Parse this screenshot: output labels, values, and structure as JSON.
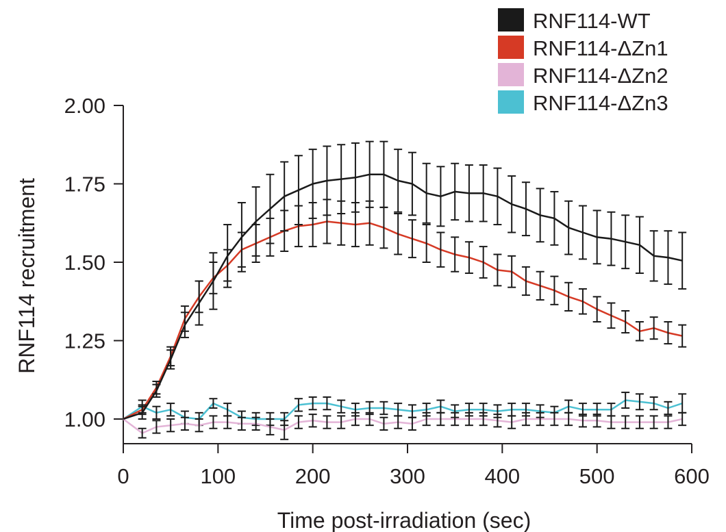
{
  "chart_data": {
    "type": "line",
    "title": "",
    "xlabel": "Time post-irradiation (sec)",
    "ylabel": "RNF114 recruitment",
    "xlim": [
      0,
      600
    ],
    "ylim": [
      0.92,
      2.0
    ],
    "xticks": [
      0,
      100,
      200,
      300,
      400,
      500,
      600
    ],
    "xtick_labels": [
      "0",
      "100",
      "200",
      "300",
      "400",
      "500",
      "600"
    ],
    "yticks": [
      1.0,
      1.25,
      1.5,
      1.75,
      2.0
    ],
    "ytick_labels": [
      "1.00",
      "1.25",
      "1.50",
      "1.75",
      "2.00"
    ],
    "grid": false,
    "legend_position": "top-right",
    "x": [
      0,
      20,
      35,
      50,
      65,
      80,
      95,
      110,
      125,
      140,
      155,
      170,
      185,
      200,
      215,
      230,
      245,
      260,
      275,
      290,
      305,
      320,
      335,
      350,
      365,
      380,
      395,
      410,
      425,
      440,
      455,
      470,
      485,
      500,
      515,
      530,
      545,
      560,
      575,
      590
    ],
    "series": [
      {
        "name": "RNF114-WT",
        "color": "#1a1a1a",
        "values": [
          1.0,
          1.02,
          1.09,
          1.19,
          1.3,
          1.37,
          1.44,
          1.52,
          1.58,
          1.63,
          1.67,
          1.71,
          1.73,
          1.75,
          1.76,
          1.765,
          1.77,
          1.78,
          1.78,
          1.76,
          1.75,
          1.72,
          1.71,
          1.725,
          1.72,
          1.72,
          1.71,
          1.685,
          1.67,
          1.65,
          1.64,
          1.61,
          1.595,
          1.58,
          1.575,
          1.565,
          1.555,
          1.52,
          1.515,
          1.505
        ],
        "errors": [
          0,
          0.02,
          0.02,
          0.03,
          0.04,
          0.07,
          0.09,
          0.1,
          0.11,
          0.11,
          0.11,
          0.11,
          0.11,
          0.11,
          0.11,
          0.11,
          0.11,
          0.105,
          0.105,
          0.1,
          0.1,
          0.095,
          0.095,
          0.09,
          0.09,
          0.09,
          0.09,
          0.09,
          0.085,
          0.085,
          0.085,
          0.085,
          0.085,
          0.085,
          0.085,
          0.085,
          0.09,
          0.08,
          0.085,
          0.09
        ]
      },
      {
        "name": "RNF114-ΔZn1",
        "color": "#d63a25",
        "values": [
          1.0,
          1.03,
          1.1,
          1.2,
          1.32,
          1.39,
          1.45,
          1.49,
          1.54,
          1.56,
          1.58,
          1.6,
          1.615,
          1.62,
          1.63,
          1.625,
          1.62,
          1.625,
          1.61,
          1.59,
          1.575,
          1.56,
          1.54,
          1.525,
          1.515,
          1.5,
          1.475,
          1.47,
          1.44,
          1.425,
          1.41,
          1.39,
          1.375,
          1.35,
          1.33,
          1.31,
          1.28,
          1.29,
          1.275,
          1.265
        ],
        "errors": [
          0,
          0.015,
          0.02,
          0.03,
          0.04,
          0.05,
          0.05,
          0.05,
          0.055,
          0.06,
          0.06,
          0.065,
          0.065,
          0.07,
          0.07,
          0.07,
          0.07,
          0.07,
          0.065,
          0.065,
          0.06,
          0.06,
          0.055,
          0.055,
          0.05,
          0.05,
          0.05,
          0.05,
          0.045,
          0.045,
          0.045,
          0.045,
          0.04,
          0.04,
          0.04,
          0.035,
          0.03,
          0.035,
          0.035,
          0.035
        ]
      },
      {
        "name": "RNF114-ΔZn2",
        "color": "#e3b4d7",
        "values": [
          1.0,
          0.955,
          0.975,
          0.98,
          0.985,
          0.98,
          0.99,
          0.99,
          0.985,
          0.985,
          0.975,
          0.965,
          0.99,
          0.995,
          0.99,
          0.99,
          1.0,
          1.0,
          0.985,
          0.99,
          0.985,
          1.0,
          1.0,
          1.0,
          1.0,
          1.0,
          0.995,
          0.99,
          1.0,
          1.0,
          1.0,
          1.0,
          0.995,
          0.995,
          0.99,
          0.99,
          0.99,
          0.99,
          0.99,
          1.0
        ],
        "errors": [
          0,
          0.015,
          0.02,
          0.02,
          0.02,
          0.02,
          0.02,
          0.02,
          0.02,
          0.02,
          0.025,
          0.03,
          0.02,
          0.02,
          0.02,
          0.02,
          0.02,
          0.02,
          0.02,
          0.02,
          0.02,
          0.02,
          0.02,
          0.02,
          0.02,
          0.02,
          0.02,
          0.02,
          0.02,
          0.02,
          0.02,
          0.02,
          0.02,
          0.02,
          0.02,
          0.02,
          0.02,
          0.02,
          0.02,
          0.02
        ]
      },
      {
        "name": "RNF114-ΔZn3",
        "color": "#4cc0d2",
        "values": [
          1.0,
          1.04,
          1.02,
          1.03,
          1.005,
          1.0,
          1.05,
          1.03,
          1.005,
          1.0,
          1.0,
          1.0,
          1.045,
          1.05,
          1.05,
          1.04,
          1.03,
          1.035,
          1.035,
          1.03,
          1.025,
          1.03,
          1.04,
          1.025,
          1.03,
          1.03,
          1.025,
          1.03,
          1.03,
          1.025,
          1.02,
          1.04,
          1.03,
          1.03,
          1.03,
          1.06,
          1.055,
          1.05,
          1.035,
          1.05
        ],
        "errors": [
          0,
          0.02,
          0.02,
          0.02,
          0.02,
          0.02,
          0.015,
          0.02,
          0.02,
          0.02,
          0.02,
          0.02,
          0.02,
          0.02,
          0.02,
          0.02,
          0.02,
          0.02,
          0.02,
          0.02,
          0.02,
          0.02,
          0.02,
          0.02,
          0.02,
          0.02,
          0.02,
          0.02,
          0.02,
          0.02,
          0.02,
          0.02,
          0.02,
          0.02,
          0.02,
          0.025,
          0.025,
          0.02,
          0.02,
          0.03
        ]
      }
    ]
  }
}
